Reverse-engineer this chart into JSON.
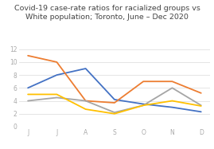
{
  "title_line1": "Covid-19 case-rate ratios for racialized groups vs",
  "title_line2": "White population; Toronto, June – Dec 2020",
  "x_labels": [
    "J",
    "J",
    "A",
    "S",
    "O",
    "N",
    "D"
  ],
  "series": {
    "Black": [
      6.0,
      8.0,
      9.0,
      4.2,
      3.5,
      3.0,
      2.3
    ],
    "Latin A": [
      11.0,
      10.0,
      4.0,
      3.7,
      7.0,
      7.0,
      5.2
    ],
    "S.Asian": [
      4.0,
      4.5,
      4.0,
      2.2,
      3.3,
      6.0,
      3.3
    ],
    "SE - Asian": [
      5.0,
      5.0,
      2.7,
      2.0,
      3.3,
      4.0,
      3.2
    ]
  },
  "colors": {
    "Black": "#4472C4",
    "Latin A": "#ED7D31",
    "S.Asian": "#A5A5A5",
    "SE - Asian": "#FFC000"
  },
  "ylim": [
    0,
    12
  ],
  "yticks": [
    0,
    2,
    4,
    6,
    8,
    10,
    12
  ],
  "title_fontsize": 6.8,
  "legend_fontsize": 5.2,
  "tick_fontsize": 5.5,
  "tick_color": "#aaaaaa",
  "grid_color": "#e0e0e0",
  "line_color": "#cccccc",
  "background_color": "#ffffff"
}
